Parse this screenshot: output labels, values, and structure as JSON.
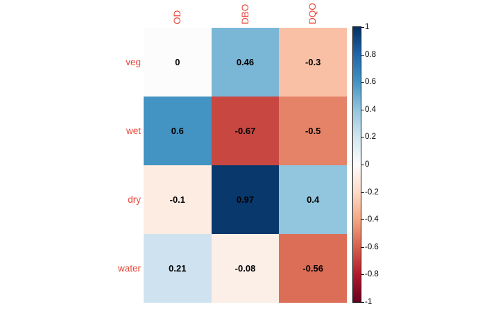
{
  "chart_data": {
    "type": "heatmap",
    "title": "",
    "rows": [
      "veg",
      "wet",
      "dry",
      "water"
    ],
    "columns": [
      "OD",
      "DBO",
      "DQO"
    ],
    "values": [
      [
        0,
        0.46,
        -0.3
      ],
      [
        0.6,
        -0.67,
        -0.5
      ],
      [
        -0.1,
        0.97,
        0.4
      ],
      [
        0.21,
        -0.08,
        -0.56
      ]
    ],
    "cell_labels": [
      [
        "0",
        "0.46",
        "-0.3"
      ],
      [
        "0.6",
        "-0.67",
        "-0.5"
      ],
      [
        "-0.1",
        "0.97",
        "0.4"
      ],
      [
        "0.21",
        "-0.08",
        "-0.56"
      ]
    ],
    "colorbar": {
      "min": -1,
      "max": 1,
      "tick_labels": [
        "1",
        "0.8",
        "0.6",
        "0.4",
        "0.2",
        "0",
        "-0.2",
        "-0.4",
        "-0.6",
        "-0.8",
        "-1"
      ],
      "position": "right"
    },
    "colormap": {
      "name": "RdBu",
      "stops": [
        {
          "value": -1.0,
          "color": "#67001F"
        },
        {
          "value": -0.8,
          "color": "#B2182B"
        },
        {
          "value": -0.6,
          "color": "#D6604D"
        },
        {
          "value": -0.4,
          "color": "#F4A582"
        },
        {
          "value": -0.2,
          "color": "#FDDBC7"
        },
        {
          "value": 0.0,
          "color": "#FCFCFC"
        },
        {
          "value": 0.2,
          "color": "#D1E5F0"
        },
        {
          "value": 0.4,
          "color": "#92C5DE"
        },
        {
          "value": 0.6,
          "color": "#4393C3"
        },
        {
          "value": 0.8,
          "color": "#2166AC"
        },
        {
          "value": 1.0,
          "color": "#053061"
        }
      ]
    },
    "axis_label_color": "#E8483C",
    "cell_text_color": "#000000",
    "background_color": "#FFFFFF",
    "grid": "off"
  }
}
